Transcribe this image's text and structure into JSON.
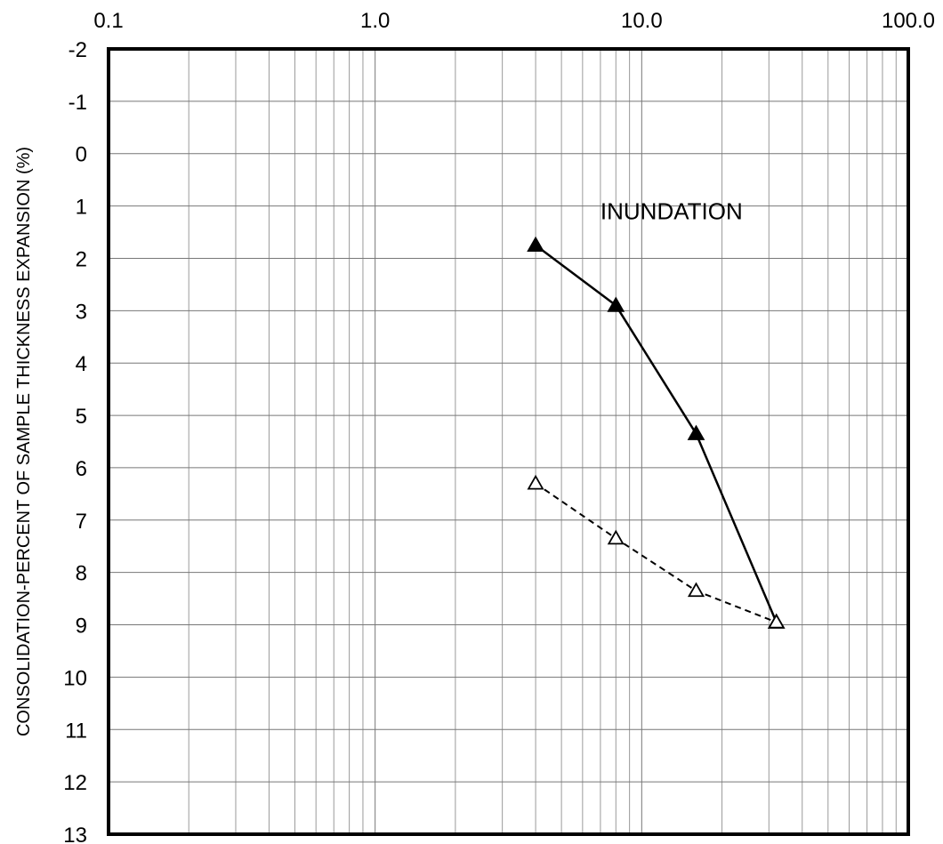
{
  "chart_data": {
    "type": "line",
    "x_scale": "log",
    "y_inverted": true,
    "xlim": [
      0.1,
      100.0
    ],
    "ylim": [
      -2,
      13
    ],
    "x_ticks": [
      0.1,
      1.0,
      10.0,
      100.0
    ],
    "x_tick_labels": [
      "0.1",
      "1.0",
      "10.0",
      "100.0"
    ],
    "y_ticks": [
      -2,
      -1,
      0,
      1,
      2,
      3,
      4,
      5,
      6,
      7,
      8,
      9,
      10,
      11,
      12,
      13
    ],
    "y_tick_labels": [
      "-2",
      "-1",
      "0",
      "1",
      "2",
      "3",
      "4",
      "5",
      "6",
      "7",
      "8",
      "9",
      "10",
      "11",
      "12",
      "13"
    ],
    "xlabel": "",
    "ylabel": "CONSOLIDATION-PERCENT OF SAMPLE THICKNESS EXPANSION (%)",
    "title": "",
    "grid": true,
    "annotations": [
      {
        "text": "INUNDATION",
        "x": 7.0,
        "y": 1.1
      }
    ],
    "series": [
      {
        "line_style": "solid",
        "marker": "filled-triangle",
        "color": "#000000",
        "x": [
          4.0,
          8.0,
          16.0,
          32.0
        ],
        "y": [
          1.75,
          2.9,
          5.35,
          8.95
        ]
      },
      {
        "line_style": "dashed",
        "marker": "open-triangle",
        "color": "#000000",
        "x": [
          4.0,
          8.0,
          16.0,
          32.0
        ],
        "y": [
          6.3,
          7.35,
          8.35,
          8.95
        ]
      }
    ]
  }
}
